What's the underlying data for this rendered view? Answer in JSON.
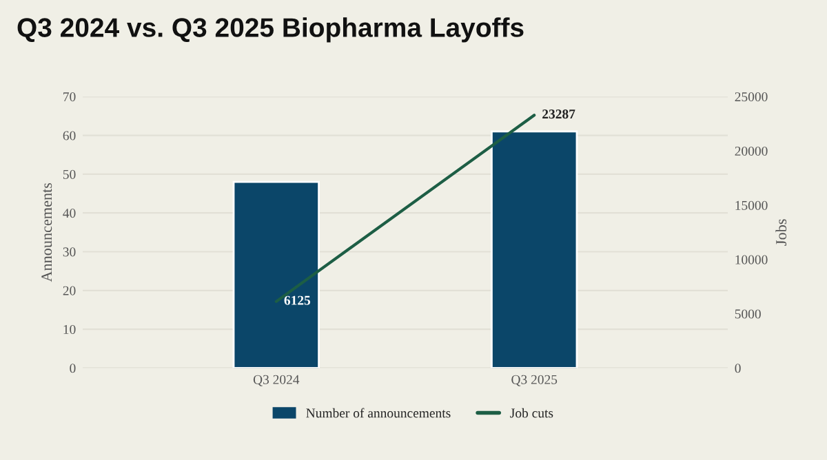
{
  "chart_data": {
    "type": "bar",
    "title": "Q3 2024 vs. Q3 2025 Biopharma Layoffs",
    "categories": [
      "Q3 2024",
      "Q3 2025"
    ],
    "series": [
      {
        "name": "Number of announcements",
        "color": "#0b4669",
        "values": [
          48,
          61
        ]
      },
      {
        "name": "Job cuts",
        "type": "line",
        "axis": "y2",
        "color": "#1d5e45",
        "values": [
          6125,
          23287
        ],
        "value_labels": [
          "6125",
          "23287"
        ]
      }
    ],
    "ylabel": "Announcements",
    "y2label": "Jobs",
    "ylim": [
      0,
      70
    ],
    "yticks": [
      0,
      10,
      20,
      30,
      40,
      50,
      60,
      70
    ],
    "y2lim": [
      0,
      25000
    ],
    "y2ticks": [
      0,
      5000,
      10000,
      15000,
      20000,
      25000
    ],
    "grid": "y",
    "legend": "bottom",
    "marker": "none"
  }
}
